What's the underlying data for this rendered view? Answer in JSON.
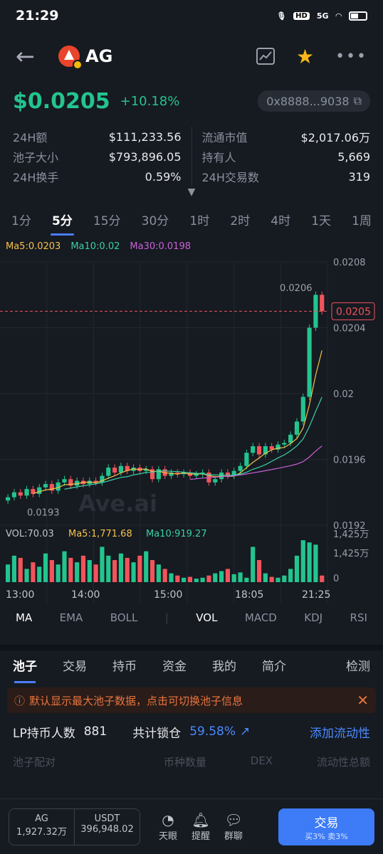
{
  "status": {
    "time": "21:29",
    "hd": "HD",
    "net": "5G"
  },
  "header": {
    "title": "AG"
  },
  "price": {
    "value": "$0.0205",
    "change": "+10.18%",
    "address": "0x8888...9038"
  },
  "stats": {
    "left": [
      {
        "label": "24H额",
        "value": "$111,233.56"
      },
      {
        "label": "池子大小",
        "value": "$793,896.05"
      },
      {
        "label": "24H换手",
        "value": "0.59%"
      }
    ],
    "right": [
      {
        "label": "流通市值",
        "value": "$2,017.06万"
      },
      {
        "label": "持有人",
        "value": "5,669"
      },
      {
        "label": "24H交易数",
        "value": "319"
      }
    ]
  },
  "timeframes": [
    "1分",
    "5分",
    "15分",
    "30分",
    "1时",
    "2时",
    "4时",
    "1天",
    "1周"
  ],
  "ma": {
    "ma5": "Ma5:0.0203",
    "ma10": "Ma10:0.02",
    "ma30": "Ma30:0.0198"
  },
  "chart_data": {
    "type": "candlestick",
    "y_ticks": [
      "0.0208",
      "0.0204",
      "0.02",
      "0.0196",
      "0.0192"
    ],
    "ylim": [
      0.0192,
      0.0208
    ],
    "current_price": "0.0205",
    "high_label": "0.0206",
    "low_label": "0.0193",
    "x_ticks": [
      "13:00",
      "14:00",
      "15:00",
      "18:05",
      "21:25"
    ],
    "watermark": "Ave.ai",
    "candles_approx": [
      {
        "o": 0.01935,
        "c": 0.01937
      },
      {
        "o": 0.01937,
        "c": 0.0194
      },
      {
        "o": 0.0194,
        "c": 0.01938
      },
      {
        "o": 0.01938,
        "c": 0.01942
      },
      {
        "o": 0.01942,
        "c": 0.01939
      },
      {
        "o": 0.01939,
        "c": 0.01943
      },
      {
        "o": 0.01943,
        "c": 0.01945
      },
      {
        "o": 0.01945,
        "c": 0.01941
      },
      {
        "o": 0.01941,
        "c": 0.01946
      },
      {
        "o": 0.01946,
        "c": 0.01948
      },
      {
        "o": 0.01948,
        "c": 0.01944
      },
      {
        "o": 0.01944,
        "c": 0.01947
      },
      {
        "o": 0.01947,
        "c": 0.01945
      },
      {
        "o": 0.01945,
        "c": 0.01947
      },
      {
        "o": 0.01947,
        "c": 0.01946
      },
      {
        "o": 0.01946,
        "c": 0.0195
      },
      {
        "o": 0.0195,
        "c": 0.01955
      },
      {
        "o": 0.01955,
        "c": 0.01952
      },
      {
        "o": 0.01952,
        "c": 0.01956
      },
      {
        "o": 0.01956,
        "c": 0.01953
      },
      {
        "o": 0.01953,
        "c": 0.01955
      },
      {
        "o": 0.01955,
        "c": 0.01953
      },
      {
        "o": 0.01953,
        "c": 0.01954
      },
      {
        "o": 0.01954,
        "c": 0.01948
      },
      {
        "o": 0.01948,
        "c": 0.01954
      },
      {
        "o": 0.01954,
        "c": 0.0195
      },
      {
        "o": 0.0195,
        "c": 0.01952
      },
      {
        "o": 0.01952,
        "c": 0.01951
      },
      {
        "o": 0.01951,
        "c": 0.01952
      },
      {
        "o": 0.01952,
        "c": 0.0195
      },
      {
        "o": 0.0195,
        "c": 0.01951
      },
      {
        "o": 0.01951,
        "c": 0.01952
      },
      {
        "o": 0.01952,
        "c": 0.01946
      },
      {
        "o": 0.01946,
        "c": 0.01948
      },
      {
        "o": 0.01948,
        "c": 0.01952
      },
      {
        "o": 0.01952,
        "c": 0.0195
      },
      {
        "o": 0.0195,
        "c": 0.01953
      },
      {
        "o": 0.01953,
        "c": 0.01956
      },
      {
        "o": 0.01956,
        "c": 0.01964
      },
      {
        "o": 0.01964,
        "c": 0.01968
      },
      {
        "o": 0.01968,
        "c": 0.01963
      },
      {
        "o": 0.01963,
        "c": 0.01968
      },
      {
        "o": 0.01968,
        "c": 0.01966
      },
      {
        "o": 0.01966,
        "c": 0.01969
      },
      {
        "o": 0.01969,
        "c": 0.0197
      },
      {
        "o": 0.0197,
        "c": 0.01975
      },
      {
        "o": 0.01975,
        "c": 0.01983
      },
      {
        "o": 0.01983,
        "c": 0.01998
      },
      {
        "o": 0.01998,
        "c": 0.0204
      },
      {
        "o": 0.0204,
        "c": 0.0206
      },
      {
        "o": 0.0206,
        "c": 0.0205
      }
    ]
  },
  "volume": {
    "label": "VOL:70.03",
    "ma5": "Ma5:1,771.68",
    "ma10": "Ma10:919.27",
    "axis_top": "1,425万",
    "axis_mid": "1,425万",
    "axis_zero": "0",
    "bars": [
      40,
      60,
      55,
      30,
      45,
      35,
      65,
      50,
      40,
      70,
      55,
      45,
      60,
      50,
      40,
      80,
      60,
      50,
      65,
      55,
      45,
      60,
      70,
      50,
      40,
      30,
      20,
      15,
      10,
      12,
      8,
      10,
      15,
      20,
      25,
      30,
      18,
      22,
      10,
      80,
      50,
      20,
      12,
      10,
      15,
      30,
      60,
      95,
      90,
      85,
      15
    ]
  },
  "indicators": [
    "MA",
    "EMA",
    "BOLL",
    "VOL",
    "MACD",
    "KDJ",
    "RSI"
  ],
  "tabs": [
    "池子",
    "交易",
    "持币",
    "资金",
    "我的",
    "简介",
    "检测"
  ],
  "notice": "默认显示最大池子数据，点击可切换池子信息",
  "lp": {
    "holders_label": "LP持币人数",
    "holders": "881",
    "locked_label": "共计锁仓",
    "locked": "59.58%",
    "add": "添加流动性"
  },
  "peek": {
    "a": "池子配对",
    "b": "币种数量",
    "c": "DEX",
    "d": "流动性总额"
  },
  "bottom": {
    "a_name": "AG",
    "a_val": "1,927.32万",
    "b_name": "USDT",
    "b_val": "396,948.02",
    "eye": "天眼",
    "alert": "提醒",
    "group": "群聊",
    "trade": "交易",
    "fee": "买3%  卖3%"
  }
}
